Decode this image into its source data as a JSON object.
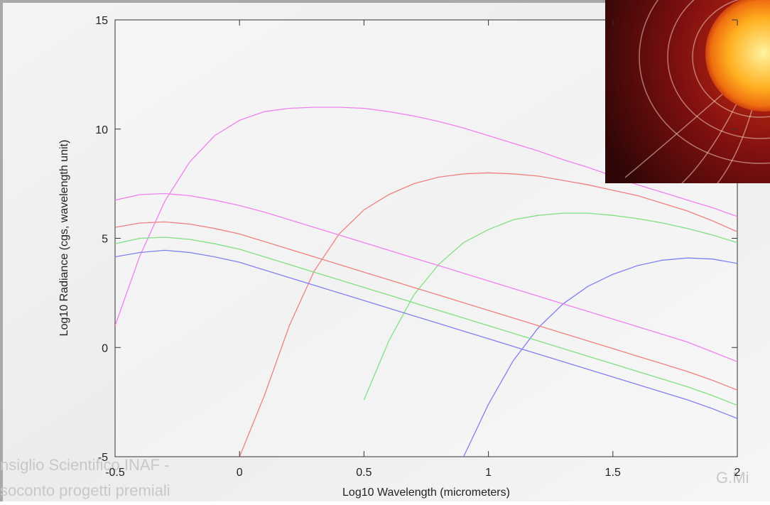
{
  "chart_data": {
    "type": "line",
    "xlabel": "Log10 Wavelength (micrometers)",
    "ylabel": "Log10 Radiance (cgs, wavelength unit)",
    "x": [
      -0.5,
      -0.4,
      -0.3,
      -0.2,
      -0.1,
      0,
      0.1,
      0.2,
      0.3,
      0.4,
      0.5,
      0.6,
      0.7,
      0.8,
      0.9,
      1.0,
      1.1,
      1.2,
      1.3,
      1.4,
      1.5,
      1.6,
      1.7,
      1.8,
      1.9,
      2.0
    ],
    "series": [
      {
        "color": "#f080f0",
        "values": [
          1.0,
          4.2,
          6.7,
          8.5,
          9.7,
          10.4,
          10.8,
          10.95,
          11.0,
          11.0,
          10.95,
          10.8,
          10.6,
          10.35,
          10.05,
          9.7,
          9.35,
          9.0,
          8.6,
          8.25,
          7.85,
          7.45,
          7.1,
          6.75,
          6.4,
          6.0
        ]
      },
      {
        "color": "#f08080",
        "values": [
          null,
          null,
          null,
          null,
          null,
          -5.0,
          -2.2,
          1.0,
          3.5,
          5.2,
          6.3,
          7.0,
          7.5,
          7.8,
          7.95,
          8.0,
          7.95,
          7.85,
          7.65,
          7.45,
          7.2,
          6.95,
          6.6,
          6.25,
          5.8,
          5.3
        ]
      },
      {
        "color": "#80e080",
        "values": [
          null,
          null,
          null,
          null,
          null,
          null,
          null,
          null,
          null,
          null,
          -2.4,
          0.3,
          2.4,
          3.8,
          4.8,
          5.4,
          5.85,
          6.05,
          6.15,
          6.15,
          6.05,
          5.9,
          5.7,
          5.45,
          5.15,
          4.8
        ]
      },
      {
        "color": "#8080f0",
        "values": [
          null,
          null,
          null,
          null,
          null,
          null,
          null,
          null,
          null,
          null,
          null,
          null,
          null,
          null,
          -5.0,
          -2.6,
          -0.6,
          0.9,
          2.0,
          2.8,
          3.35,
          3.75,
          4.0,
          4.1,
          4.05,
          3.85
        ]
      },
      {
        "color": "#f080f0",
        "values": [
          6.75,
          7.0,
          7.05,
          6.95,
          6.75,
          6.5,
          6.2,
          5.85,
          5.5,
          5.15,
          4.8,
          4.45,
          4.1,
          3.75,
          3.4,
          3.05,
          2.7,
          2.35,
          2.0,
          1.65,
          1.3,
          0.95,
          0.6,
          0.25,
          -0.2,
          -0.65
        ]
      },
      {
        "color": "#f08080",
        "values": [
          5.5,
          5.7,
          5.75,
          5.65,
          5.45,
          5.2,
          4.85,
          4.5,
          4.15,
          3.8,
          3.45,
          3.1,
          2.75,
          2.4,
          2.05,
          1.7,
          1.35,
          1.0,
          0.65,
          0.3,
          -0.05,
          -0.4,
          -0.75,
          -1.1,
          -1.5,
          -1.95
        ]
      },
      {
        "color": "#80e080",
        "values": [
          4.75,
          5.0,
          5.05,
          4.95,
          4.75,
          4.5,
          4.15,
          3.8,
          3.45,
          3.1,
          2.75,
          2.4,
          2.05,
          1.7,
          1.35,
          1.0,
          0.65,
          0.3,
          -0.05,
          -0.4,
          -0.75,
          -1.1,
          -1.45,
          -1.8,
          -2.2,
          -2.65
        ]
      },
      {
        "color": "#8080f0",
        "values": [
          4.15,
          4.35,
          4.45,
          4.35,
          4.15,
          3.9,
          3.55,
          3.2,
          2.85,
          2.5,
          2.15,
          1.8,
          1.45,
          1.1,
          0.75,
          0.4,
          0.05,
          -0.3,
          -0.65,
          -1.0,
          -1.35,
          -1.7,
          -2.05,
          -2.4,
          -2.8,
          -3.25
        ]
      }
    ],
    "xlim": [
      -0.5,
      2
    ],
    "xticks": [
      -0.5,
      0,
      0.5,
      1,
      1.5,
      2
    ],
    "ylim": [
      -5,
      15
    ],
    "yticks": [
      -5,
      0,
      5,
      10,
      15
    ],
    "grid": false
  },
  "footer": {
    "left_line1": "nsiglio Scientifico INAF -",
    "left_line2": "soconto progetti premiali",
    "right": "G.Mi"
  }
}
